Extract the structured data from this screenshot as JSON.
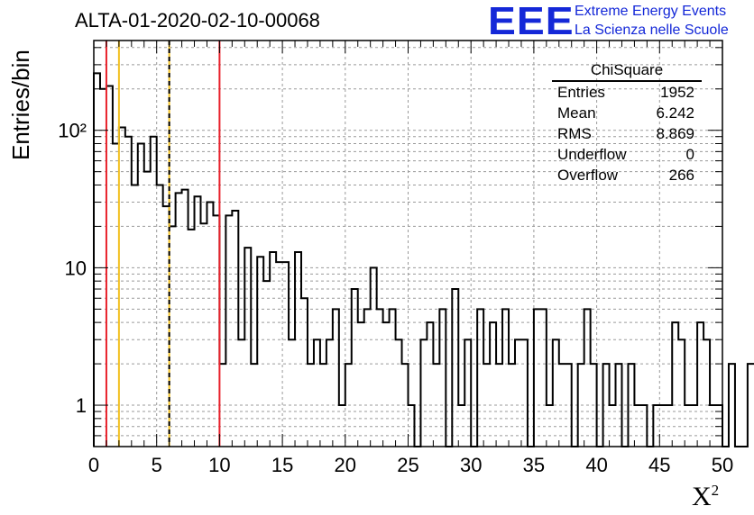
{
  "title": "ALTA-01-2020-02-10-00068",
  "logo": {
    "mark": "EEE",
    "line1": "Extreme Energy Events",
    "line2": "La Scienza nelle Scuole"
  },
  "stats_box": {
    "title": "ChiSquare",
    "rows": [
      {
        "label": "Entries",
        "value": "1952"
      },
      {
        "label": "Mean",
        "value": "6.242"
      },
      {
        "label": "RMS",
        "value": "8.869"
      },
      {
        "label": "Underflow",
        "value": "0"
      },
      {
        "label": "Overflow",
        "value": "266"
      }
    ]
  },
  "chart_data": {
    "type": "histogram",
    "title": "ALTA-01-2020-02-10-00068",
    "xlabel": "χ²",
    "ylabel": "Entries/bin",
    "xlim": [
      0,
      50
    ],
    "ylim": [
      0.5,
      450
    ],
    "y_scale": "log",
    "grid": true,
    "bin_width": 0.5,
    "x_ticks": [
      "0",
      "5",
      "10",
      "15",
      "20",
      "25",
      "30",
      "35",
      "40",
      "45",
      "50"
    ],
    "y_ticks": [
      "1",
      "10",
      "10²"
    ],
    "counts": [
      260,
      200,
      210,
      80,
      105,
      90,
      40,
      80,
      50,
      90,
      40,
      28,
      20,
      35,
      37,
      19,
      33,
      21,
      30,
      24,
      2,
      24,
      26,
      3,
      14,
      2,
      12,
      8,
      13,
      11,
      11,
      3,
      13,
      6,
      2,
      3,
      2,
      3,
      5,
      1,
      2,
      7,
      4,
      5,
      10,
      5,
      4,
      5,
      3,
      2,
      1,
      0,
      3,
      4,
      2,
      5,
      0,
      7,
      1,
      3,
      0,
      5,
      2,
      4,
      2,
      5,
      2,
      3,
      3,
      0,
      5,
      5,
      1,
      3,
      2,
      2,
      0,
      2,
      5,
      2,
      0,
      2,
      1,
      2,
      0,
      2,
      1,
      1,
      0,
      1,
      1,
      1,
      4,
      3,
      1,
      1,
      4,
      3,
      1,
      1,
      0,
      2,
      0,
      0,
      2,
      2,
      3,
      3,
      2,
      0,
      0,
      1,
      0,
      2,
      0,
      0,
      2,
      0,
      3,
      3,
      2,
      3,
      2,
      2,
      1,
      3,
      3,
      2,
      0,
      0,
      3,
      3,
      2,
      2,
      0,
      2,
      1,
      0,
      3,
      1,
      3,
      2,
      2,
      1,
      3,
      0,
      3,
      3,
      3,
      2,
      4,
      0,
      5,
      0,
      2,
      2,
      1,
      4,
      3,
      2,
      3,
      2,
      1,
      3,
      2,
      0,
      1,
      0,
      2,
      1,
      4,
      0,
      3,
      2,
      1,
      0,
      1,
      1,
      3,
      0,
      5,
      2,
      3,
      2,
      2,
      4,
      3,
      0,
      1,
      0,
      2,
      0,
      1,
      2,
      2,
      3,
      3,
      2,
      5,
      0
    ],
    "reference_lines": [
      {
        "x": 1,
        "color": "#e8202a",
        "style": "solid"
      },
      {
        "x": 2,
        "color": "#f2c020",
        "style": "solid"
      },
      {
        "x": 6,
        "color": "#f2c020",
        "style": "solid"
      },
      {
        "x": 6,
        "color": "#000000",
        "style": "dashed"
      },
      {
        "x": 10,
        "color": "#e8202a",
        "style": "solid"
      }
    ]
  }
}
